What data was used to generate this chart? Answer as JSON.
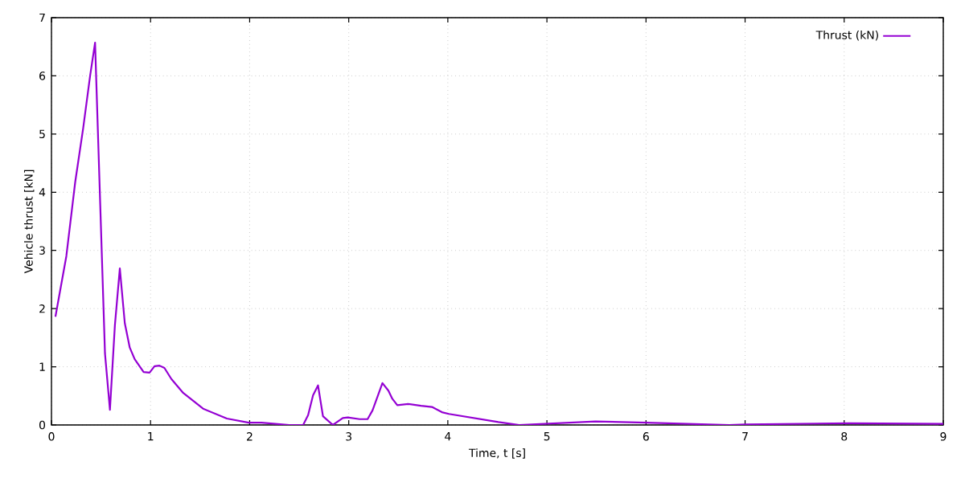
{
  "chart_data": {
    "type": "line",
    "xlabel": "Time, t [s]",
    "ylabel": "Vehicle thrust [kN]",
    "xlim": [
      0,
      9
    ],
    "ylim": [
      0,
      7
    ],
    "xticks": [
      0,
      1,
      2,
      3,
      4,
      5,
      6,
      7,
      8,
      9
    ],
    "yticks": [
      0,
      1,
      2,
      3,
      4,
      5,
      6,
      7
    ],
    "grid": true,
    "legend": "top right",
    "marker": "none",
    "line_style": "solid",
    "series": [
      {
        "name": "Thrust (kN)",
        "color": "#9400d3",
        "x": [
          0.04,
          0.15,
          0.24,
          0.32,
          0.39,
          0.44,
          0.54,
          0.59,
          0.64,
          0.69,
          0.74,
          0.79,
          0.84,
          0.93,
          0.99,
          1.04,
          1.09,
          1.14,
          1.21,
          1.33,
          1.53,
          1.77,
          1.99,
          2.12,
          2.4,
          2.54,
          2.59,
          2.64,
          2.69,
          2.74,
          2.84,
          2.94,
          2.99,
          3.11,
          3.19,
          3.24,
          3.34,
          3.4,
          3.44,
          3.49,
          3.6,
          3.73,
          3.84,
          3.94,
          4.01,
          4.51,
          4.72,
          5.49,
          6.0,
          6.84,
          7.0,
          8.05,
          9.0
        ],
        "values": [
          1.86,
          2.9,
          4.18,
          5.1,
          6.0,
          6.57,
          1.23,
          0.26,
          1.71,
          2.69,
          1.75,
          1.33,
          1.13,
          0.91,
          0.9,
          1.01,
          1.02,
          0.98,
          0.79,
          0.55,
          0.28,
          0.11,
          0.04,
          0.04,
          0.0,
          0.0,
          0.17,
          0.51,
          0.68,
          0.15,
          0.0,
          0.12,
          0.13,
          0.1,
          0.1,
          0.25,
          0.72,
          0.59,
          0.45,
          0.34,
          0.36,
          0.33,
          0.31,
          0.22,
          0.19,
          0.05,
          0.0,
          0.06,
          0.04,
          0.0,
          0.01,
          0.03,
          0.02
        ]
      }
    ]
  }
}
